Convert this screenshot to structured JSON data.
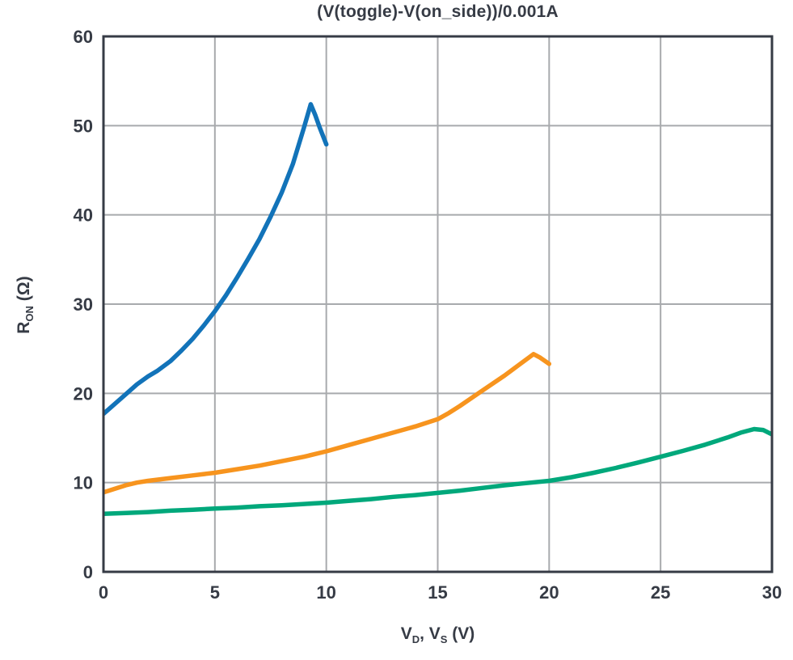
{
  "chart_data": {
    "type": "line",
    "title": "(V(toggle)-V(on_side))/0.001A",
    "xlabel_text": "V_D, V_S (V)",
    "ylabel_text": "R_ON (Ω)",
    "xlabel": {
      "p1": "V",
      "s1": "D",
      "p2": ", V",
      "s2": "S",
      "p3": " (V)"
    },
    "ylabel": {
      "base": "R",
      "sub": "ON",
      "suffix": " (Ω)"
    },
    "xlim": [
      0,
      30
    ],
    "ylim": [
      0,
      60
    ],
    "xticks": [
      0,
      5,
      10,
      15,
      20,
      25,
      30
    ],
    "yticks": [
      0,
      10,
      20,
      30,
      40,
      50,
      60
    ],
    "grid": true,
    "legend": "none",
    "axis_color": "#363b45",
    "grid_color": "#a8aaad",
    "series": [
      {
        "name": "blue-curve",
        "color": "#1273b9",
        "points": [
          [
            0,
            17.7
          ],
          [
            0.5,
            18.8
          ],
          [
            1,
            19.9
          ],
          [
            1.5,
            21.0
          ],
          [
            2,
            21.9
          ],
          [
            2.4,
            22.5
          ],
          [
            3,
            23.6
          ],
          [
            3.5,
            24.8
          ],
          [
            4,
            26.1
          ],
          [
            4.5,
            27.6
          ],
          [
            5,
            29.2
          ],
          [
            5.5,
            31.0
          ],
          [
            6,
            33.0
          ],
          [
            6.5,
            35.1
          ],
          [
            7,
            37.3
          ],
          [
            7.5,
            39.8
          ],
          [
            8,
            42.5
          ],
          [
            8.5,
            45.7
          ],
          [
            9,
            49.8
          ],
          [
            9.3,
            52.4
          ],
          [
            9.5,
            51.2
          ],
          [
            9.7,
            49.8
          ],
          [
            10,
            47.9
          ]
        ]
      },
      {
        "name": "orange-curve",
        "color": "#f7941e",
        "points": [
          [
            0,
            8.9
          ],
          [
            0.5,
            9.3
          ],
          [
            1,
            9.7
          ],
          [
            1.5,
            10.0
          ],
          [
            2,
            10.2
          ],
          [
            3,
            10.5
          ],
          [
            4,
            10.8
          ],
          [
            5,
            11.1
          ],
          [
            6,
            11.5
          ],
          [
            7,
            11.9
          ],
          [
            8,
            12.4
          ],
          [
            9,
            12.9
          ],
          [
            10,
            13.5
          ],
          [
            11,
            14.2
          ],
          [
            12,
            14.9
          ],
          [
            13,
            15.6
          ],
          [
            14,
            16.3
          ],
          [
            15,
            17.1
          ],
          [
            15.5,
            17.8
          ],
          [
            16,
            18.6
          ],
          [
            17,
            20.3
          ],
          [
            18,
            22.0
          ],
          [
            18.6,
            23.1
          ],
          [
            19.3,
            24.4
          ],
          [
            19.6,
            24.0
          ],
          [
            20,
            23.3
          ]
        ]
      },
      {
        "name": "green-curve",
        "color": "#00a87b",
        "points": [
          [
            0,
            6.5
          ],
          [
            1,
            6.6
          ],
          [
            2,
            6.7
          ],
          [
            3,
            6.85
          ],
          [
            4,
            6.95
          ],
          [
            5,
            7.1
          ],
          [
            6,
            7.2
          ],
          [
            7,
            7.35
          ],
          [
            8,
            7.45
          ],
          [
            9,
            7.6
          ],
          [
            10,
            7.75
          ],
          [
            11,
            7.95
          ],
          [
            12,
            8.15
          ],
          [
            13,
            8.4
          ],
          [
            14,
            8.6
          ],
          [
            15,
            8.85
          ],
          [
            16,
            9.1
          ],
          [
            17,
            9.4
          ],
          [
            18,
            9.7
          ],
          [
            19,
            9.95
          ],
          [
            20,
            10.2
          ],
          [
            21,
            10.6
          ],
          [
            22,
            11.1
          ],
          [
            23,
            11.65
          ],
          [
            24,
            12.25
          ],
          [
            25,
            12.9
          ],
          [
            26,
            13.55
          ],
          [
            27,
            14.25
          ],
          [
            28,
            15.05
          ],
          [
            28.6,
            15.6
          ],
          [
            29.2,
            16.0
          ],
          [
            29.6,
            15.9
          ],
          [
            30,
            15.4
          ]
        ]
      }
    ]
  }
}
